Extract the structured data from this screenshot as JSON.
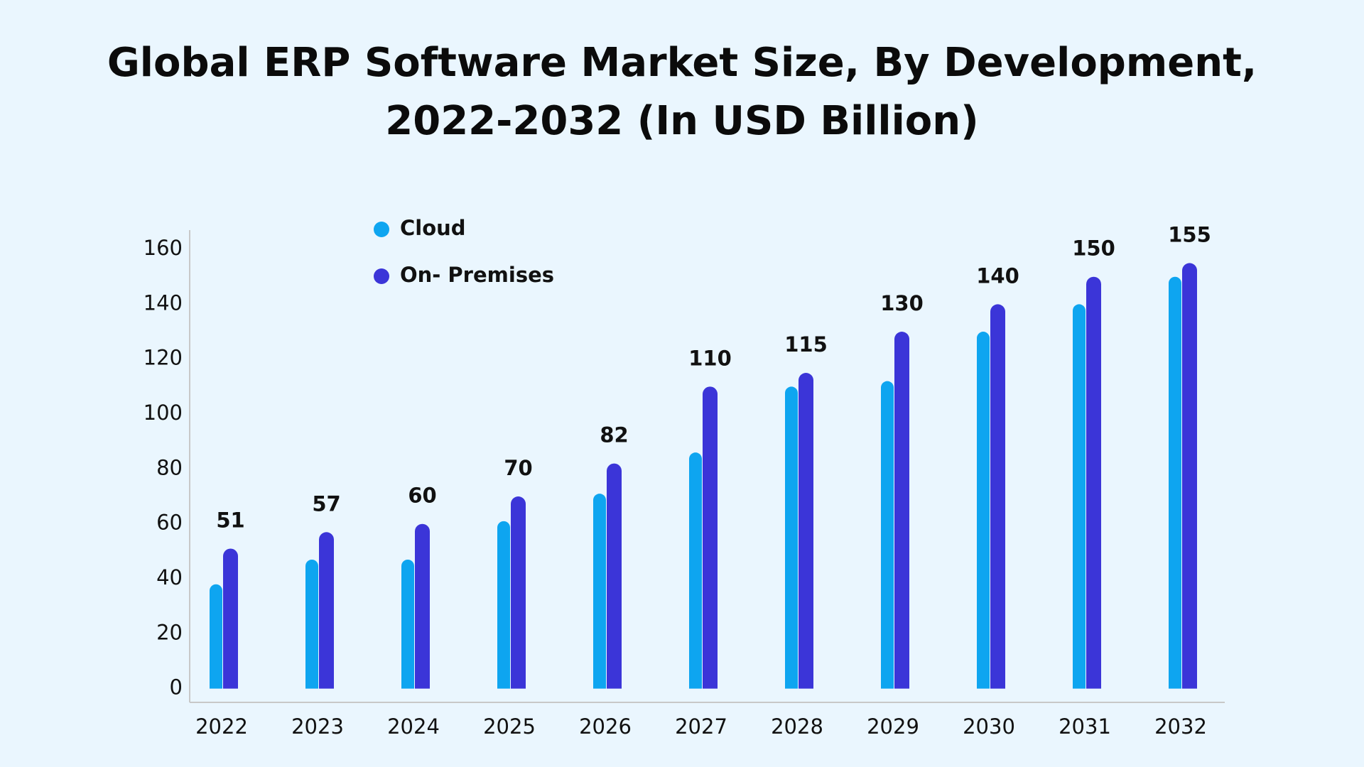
{
  "chart_data": {
    "type": "bar",
    "title": "Global ERP Software Market Size, By Development,\n2022-2032 (In USD Billion)",
    "categories": [
      "2022",
      "2023",
      "2024",
      "2025",
      "2026",
      "2027",
      "2028",
      "2029",
      "2030",
      "2031",
      "2032"
    ],
    "series": [
      {
        "name": "Cloud",
        "color": "#0ea5f0",
        "values": [
          38,
          47,
          47,
          61,
          71,
          86,
          110,
          112,
          130,
          140,
          150
        ]
      },
      {
        "name": "On- Premises",
        "color": "#3b35d8",
        "values": [
          51,
          57,
          60,
          70,
          82,
          110,
          115,
          130,
          140,
          150,
          155
        ],
        "data_labels": true
      }
    ],
    "ylim": [
      -5,
      167
    ],
    "yticks": [
      0,
      20,
      40,
      60,
      80,
      100,
      120,
      140,
      160
    ],
    "grid": false,
    "legend": "top-left"
  }
}
